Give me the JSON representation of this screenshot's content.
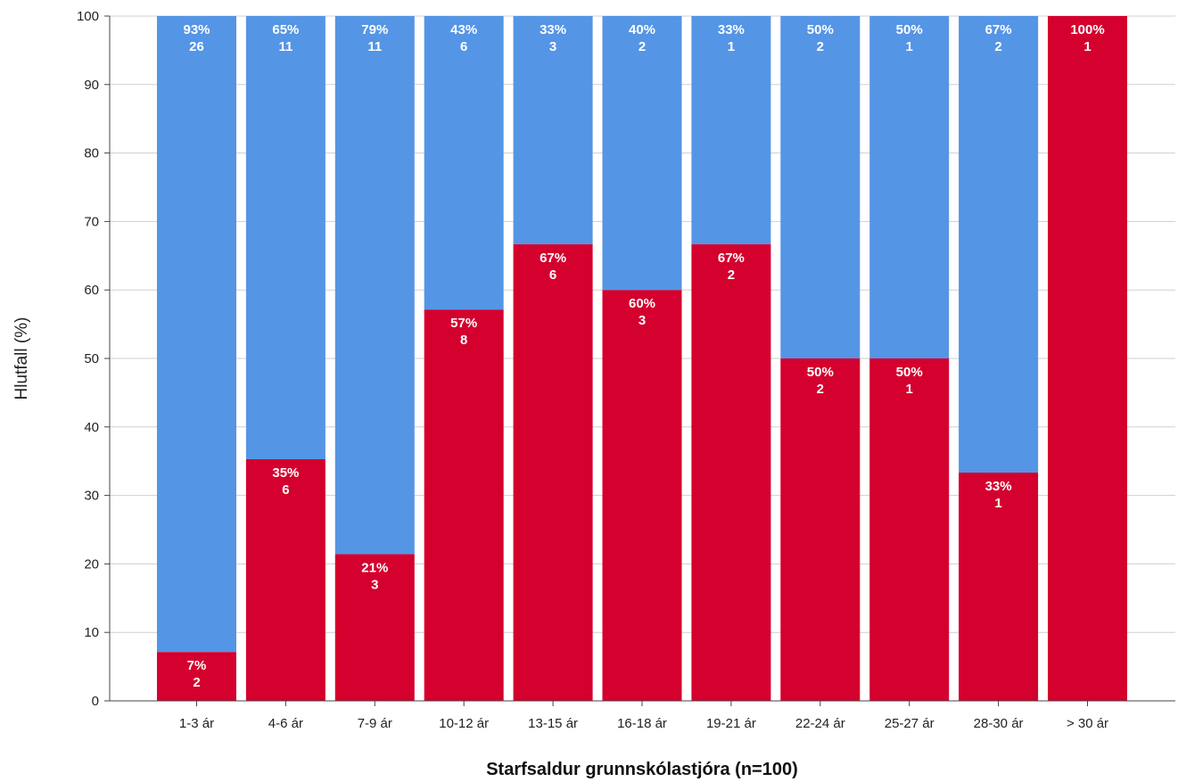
{
  "chart_data": {
    "type": "bar",
    "stacked": true,
    "categories": [
      "1-3 ár",
      "4-6 ár",
      "7-9 ár",
      "10-12 ár",
      "13-15 ár",
      "16-18 ár",
      "19-21 ár",
      "22-24 ár",
      "25-27 ár",
      "28-30 ár",
      "> 30 ár"
    ],
    "series": [
      {
        "color": "#d4002e",
        "values": [
          7.14,
          35.29,
          21.43,
          57.14,
          66.67,
          60,
          66.67,
          50,
          50,
          33.33,
          100
        ],
        "pct_labels": [
          "7%",
          "35%",
          "21%",
          "57%",
          "67%",
          "60%",
          "67%",
          "50%",
          "50%",
          "33%",
          "100%"
        ],
        "counts": [
          "2",
          "6",
          "3",
          "8",
          "6",
          "3",
          "2",
          "2",
          "1",
          "1",
          "1"
        ]
      },
      {
        "color": "#5595e5",
        "values": [
          92.86,
          64.71,
          78.57,
          42.86,
          33.33,
          40,
          33.33,
          50,
          50,
          66.67,
          0
        ],
        "pct_labels": [
          "93%",
          "65%",
          "79%",
          "43%",
          "33%",
          "40%",
          "33%",
          "50%",
          "50%",
          "67%",
          ""
        ],
        "counts": [
          "26",
          "11",
          "11",
          "6",
          "3",
          "2",
          "1",
          "2",
          "1",
          "2",
          ""
        ]
      }
    ],
    "xlabel": "Starfsaldur grunnskólastjóra (n=100)",
    "ylabel": "Hlutfall (%)",
    "ylim": [
      0,
      100
    ],
    "yticks": [
      "0",
      "10",
      "20",
      "30",
      "40",
      "50",
      "60",
      "70",
      "80",
      "90",
      "100"
    ],
    "grid": true,
    "legend": "none"
  }
}
